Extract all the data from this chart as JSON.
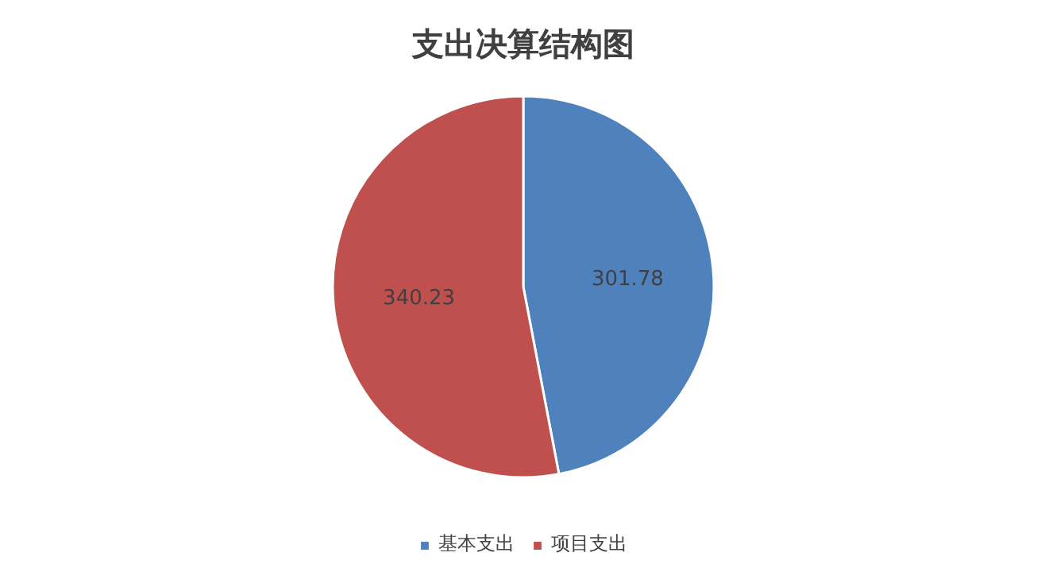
{
  "chart_data": {
    "type": "pie",
    "title": "支出决算结构图",
    "categories": [
      "基本支出",
      "项目支出"
    ],
    "values": [
      301.78,
      340.23
    ],
    "colors": [
      "#4f81bd",
      "#c0504d"
    ],
    "data_labels": true,
    "legend": "bottom"
  }
}
